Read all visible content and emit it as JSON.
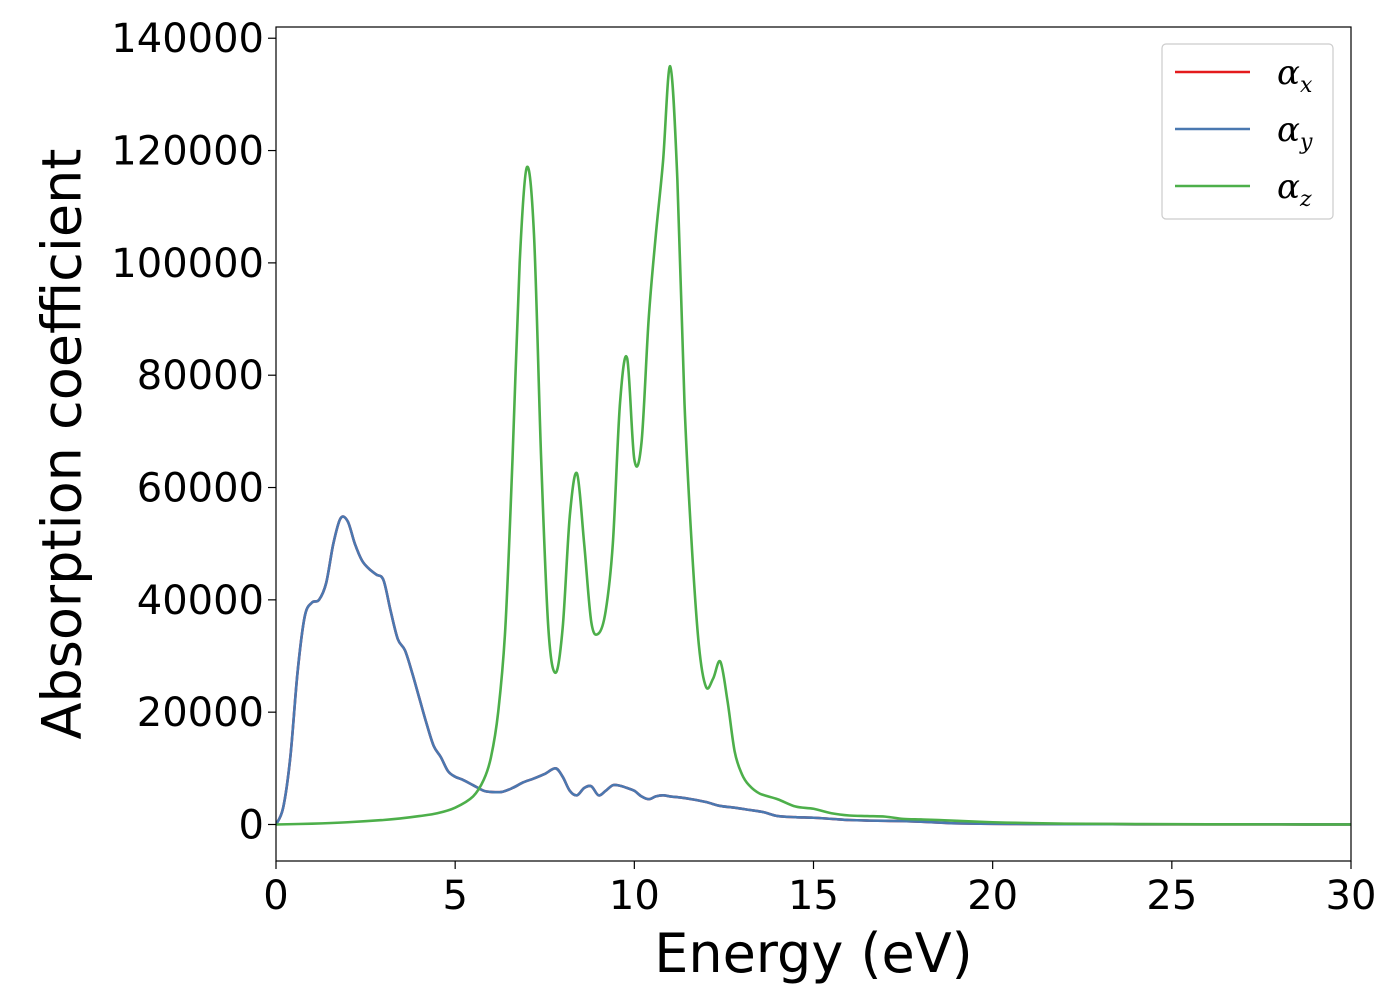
{
  "chart_data": {
    "type": "line",
    "title": "",
    "xlabel": "Energy (eV)",
    "ylabel": "Absorption coefficient",
    "xlim": [
      0,
      30
    ],
    "ylim": [
      -6500,
      142000
    ],
    "xticks": [
      0,
      5,
      10,
      15,
      20,
      25,
      30
    ],
    "yticks": [
      0,
      20000,
      40000,
      60000,
      80000,
      100000,
      120000,
      140000
    ],
    "grid": false,
    "legend_position": "top-right",
    "series": [
      {
        "name": "αx",
        "legend_base": "α",
        "legend_sub": "x",
        "color": "#e41a1c",
        "x": [
          0,
          0.2,
          0.4,
          0.6,
          0.8,
          1.0,
          1.2,
          1.4,
          1.6,
          1.8,
          2.0,
          2.2,
          2.4,
          2.6,
          2.8,
          3.0,
          3.2,
          3.4,
          3.6,
          3.8,
          4.0,
          4.2,
          4.4,
          4.6,
          4.8,
          5.0,
          5.2,
          5.5,
          5.8,
          6.0,
          6.3,
          6.6,
          6.9,
          7.2,
          7.5,
          7.8,
          8.0,
          8.2,
          8.4,
          8.6,
          8.8,
          9.0,
          9.2,
          9.4,
          9.6,
          9.8,
          10.0,
          10.2,
          10.4,
          10.6,
          10.8,
          11.0,
          11.3,
          11.6,
          12.0,
          12.4,
          12.8,
          13.2,
          13.6,
          14.0,
          14.5,
          15.0,
          15.5,
          16.0,
          16.5,
          17.0,
          17.5,
          18.0,
          18.5,
          19.0,
          20.0,
          21.0,
          22.0,
          24.0,
          26.0,
          28.0,
          30.0
        ],
        "y": [
          0,
          3000,
          12000,
          27000,
          37000,
          39500,
          40000,
          43000,
          50000,
          54500,
          54000,
          50000,
          47000,
          45500,
          44500,
          43500,
          38000,
          33000,
          31000,
          27000,
          22500,
          18000,
          14000,
          12000,
          9500,
          8500,
          8000,
          7000,
          6000,
          5800,
          5800,
          6500,
          7500,
          8200,
          9000,
          10000,
          8500,
          6000,
          5200,
          6500,
          6800,
          5200,
          6000,
          7000,
          6900,
          6500,
          6000,
          5000,
          4500,
          5000,
          5200,
          5000,
          4800,
          4500,
          4000,
          3300,
          3000,
          2600,
          2200,
          1500,
          1300,
          1200,
          1000,
          800,
          700,
          650,
          600,
          500,
          350,
          200,
          120,
          80,
          60,
          40,
          30,
          20,
          10
        ]
      },
      {
        "name": "αy",
        "legend_base": "α",
        "legend_sub": "y",
        "color": "#4a78b0",
        "x": [
          0,
          0.2,
          0.4,
          0.6,
          0.8,
          1.0,
          1.2,
          1.4,
          1.6,
          1.8,
          2.0,
          2.2,
          2.4,
          2.6,
          2.8,
          3.0,
          3.2,
          3.4,
          3.6,
          3.8,
          4.0,
          4.2,
          4.4,
          4.6,
          4.8,
          5.0,
          5.2,
          5.5,
          5.8,
          6.0,
          6.3,
          6.6,
          6.9,
          7.2,
          7.5,
          7.8,
          8.0,
          8.2,
          8.4,
          8.6,
          8.8,
          9.0,
          9.2,
          9.4,
          9.6,
          9.8,
          10.0,
          10.2,
          10.4,
          10.6,
          10.8,
          11.0,
          11.3,
          11.6,
          12.0,
          12.4,
          12.8,
          13.2,
          13.6,
          14.0,
          14.5,
          15.0,
          15.5,
          16.0,
          16.5,
          17.0,
          17.5,
          18.0,
          18.5,
          19.0,
          20.0,
          21.0,
          22.0,
          24.0,
          26.0,
          28.0,
          30.0
        ],
        "y": [
          0,
          3000,
          12000,
          27000,
          37000,
          39500,
          40000,
          43000,
          50000,
          54500,
          54000,
          50000,
          47000,
          45500,
          44500,
          43500,
          38000,
          33000,
          31000,
          27000,
          22500,
          18000,
          14000,
          12000,
          9500,
          8500,
          8000,
          7000,
          6000,
          5800,
          5800,
          6500,
          7500,
          8200,
          9000,
          10000,
          8500,
          6000,
          5200,
          6500,
          6800,
          5200,
          6000,
          7000,
          6900,
          6500,
          6000,
          5000,
          4500,
          5000,
          5200,
          5000,
          4800,
          4500,
          4000,
          3300,
          3000,
          2600,
          2200,
          1500,
          1300,
          1200,
          1000,
          800,
          700,
          650,
          600,
          500,
          350,
          200,
          120,
          80,
          60,
          40,
          30,
          20,
          10
        ]
      },
      {
        "name": "αz",
        "legend_base": "α",
        "legend_sub": "z",
        "color": "#4daf4a",
        "x": [
          0,
          1,
          2,
          3,
          3.5,
          4,
          4.5,
          5,
          5.5,
          5.8,
          6.0,
          6.2,
          6.4,
          6.6,
          6.8,
          7.0,
          7.2,
          7.4,
          7.6,
          7.8,
          8.0,
          8.2,
          8.4,
          8.6,
          8.8,
          9.0,
          9.2,
          9.4,
          9.6,
          9.8,
          10.0,
          10.2,
          10.4,
          10.6,
          10.8,
          11.0,
          11.2,
          11.4,
          11.6,
          11.8,
          12.0,
          12.2,
          12.4,
          12.6,
          12.8,
          13.0,
          13.2,
          13.5,
          14.0,
          14.5,
          15.0,
          15.5,
          16.0,
          16.5,
          17.0,
          17.5,
          18.0,
          18.5,
          19.0,
          20.0,
          21.0,
          22.0,
          24.0,
          26.0,
          28.0,
          30.0
        ],
        "y": [
          0,
          150,
          400,
          800,
          1100,
          1500,
          2000,
          3000,
          5000,
          8000,
          12000,
          20000,
          35000,
          65000,
          100000,
          117000,
          105000,
          65000,
          35000,
          27000,
          35000,
          55000,
          62500,
          50000,
          36000,
          34000,
          38000,
          50000,
          75000,
          83000,
          65000,
          68000,
          90000,
          105000,
          118000,
          135000,
          115000,
          75000,
          50000,
          32000,
          24500,
          26000,
          29000,
          22000,
          13000,
          9000,
          7000,
          5500,
          4500,
          3200,
          2800,
          2000,
          1600,
          1500,
          1400,
          1000,
          900,
          800,
          650,
          400,
          250,
          150,
          80,
          40,
          20,
          10
        ]
      }
    ]
  }
}
